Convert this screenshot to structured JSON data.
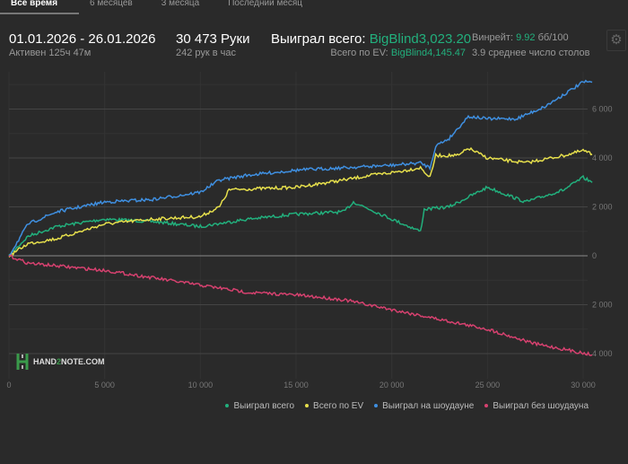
{
  "tabs": [
    {
      "label": "Все время",
      "active": true
    },
    {
      "label": "6 месяцев"
    },
    {
      "label": "3 месяца"
    },
    {
      "label": "Последний месяц"
    }
  ],
  "stats": {
    "date_range": "01.01.2026 - 26.01.2026",
    "active": "Активен 125ч 47м",
    "hands": "30 473 Руки",
    "hands_per_hour": "242 рук в час",
    "won_label": "Выиграл всего:",
    "won_value": "BigBlind3,023.20",
    "ev_label": "Всего по EV:",
    "ev_value": "BigBlind4,145.47",
    "winrate_label": "Винрейт:",
    "winrate_value": "9.92",
    "winrate_unit": "бб/100",
    "tables": "3.9 среднее число столов"
  },
  "settings_icon": "gear-icon",
  "logo": {
    "text_a": "HAND",
    "text_b": "2",
    "text_c": "NOTE.COM"
  },
  "chart_data": {
    "type": "line",
    "xlim": [
      0,
      30473
    ],
    "ylim": [
      -4200,
      7700
    ],
    "x_ticks": [
      0,
      5000,
      10000,
      15000,
      20000,
      25000,
      30000
    ],
    "x_tick_labels": [
      "0",
      "5 000",
      "10 000",
      "15 000",
      "20 000",
      "25 000",
      "30 000"
    ],
    "y_ticks": [
      6000,
      4000,
      2000,
      0,
      -2000,
      -4000
    ],
    "y_tick_labels": [
      "6 000",
      "4 000",
      "2 000",
      "0",
      "2 000",
      "4 000"
    ],
    "grid": true,
    "legend": "bottom-right",
    "series": [
      {
        "name": "Выиграл всего",
        "color": "#22b07d",
        "points": [
          [
            0,
            0
          ],
          [
            1000,
            800
          ],
          [
            2500,
            1200
          ],
          [
            5000,
            1500
          ],
          [
            7500,
            1400
          ],
          [
            10000,
            1200
          ],
          [
            12500,
            1500
          ],
          [
            15000,
            1700
          ],
          [
            17500,
            1800
          ],
          [
            18000,
            2200
          ],
          [
            20000,
            1500
          ],
          [
            21500,
            1000
          ],
          [
            21700,
            1900
          ],
          [
            23000,
            2000
          ],
          [
            25000,
            2800
          ],
          [
            27000,
            2200
          ],
          [
            29000,
            2700
          ],
          [
            30000,
            3200
          ],
          [
            30473,
            3000
          ]
        ]
      },
      {
        "name": "Всего по EV",
        "color": "#e6df4c",
        "points": [
          [
            0,
            0
          ],
          [
            1000,
            500
          ],
          [
            2500,
            700
          ],
          [
            5000,
            1300
          ],
          [
            7500,
            1500
          ],
          [
            10000,
            1600
          ],
          [
            11000,
            2000
          ],
          [
            11500,
            2700
          ],
          [
            15000,
            2800
          ],
          [
            17500,
            3100
          ],
          [
            19000,
            3300
          ],
          [
            20000,
            3400
          ],
          [
            21500,
            3600
          ],
          [
            22000,
            3200
          ],
          [
            22300,
            4100
          ],
          [
            23500,
            4100
          ],
          [
            24000,
            4400
          ],
          [
            25000,
            4000
          ],
          [
            27000,
            3800
          ],
          [
            29000,
            4100
          ],
          [
            30000,
            4300
          ],
          [
            30473,
            4150
          ]
        ]
      },
      {
        "name": "Выиграл на шоудауне",
        "color": "#3f8fe0",
        "points": [
          [
            0,
            0
          ],
          [
            1000,
            1300
          ],
          [
            2500,
            1800
          ],
          [
            5000,
            2200
          ],
          [
            7500,
            2300
          ],
          [
            10000,
            2600
          ],
          [
            11000,
            3100
          ],
          [
            12500,
            3300
          ],
          [
            15000,
            3500
          ],
          [
            17500,
            3600
          ],
          [
            20000,
            3700
          ],
          [
            21500,
            3800
          ],
          [
            22000,
            3600
          ],
          [
            22300,
            4500
          ],
          [
            23000,
            4800
          ],
          [
            24000,
            5700
          ],
          [
            25000,
            5600
          ],
          [
            26500,
            5600
          ],
          [
            28000,
            6100
          ],
          [
            30000,
            7100
          ],
          [
            30473,
            7100
          ]
        ]
      },
      {
        "name": "Выиграл без шоудауна",
        "color": "#d6416f",
        "points": [
          [
            0,
            0
          ],
          [
            1000,
            -300
          ],
          [
            5000,
            -600
          ],
          [
            7500,
            -900
          ],
          [
            10000,
            -1200
          ],
          [
            12500,
            -1500
          ],
          [
            15000,
            -1600
          ],
          [
            17500,
            -1800
          ],
          [
            20000,
            -2200
          ],
          [
            22500,
            -2600
          ],
          [
            25000,
            -3000
          ],
          [
            27500,
            -3600
          ],
          [
            29500,
            -3900
          ],
          [
            30473,
            -4050
          ]
        ]
      }
    ]
  }
}
